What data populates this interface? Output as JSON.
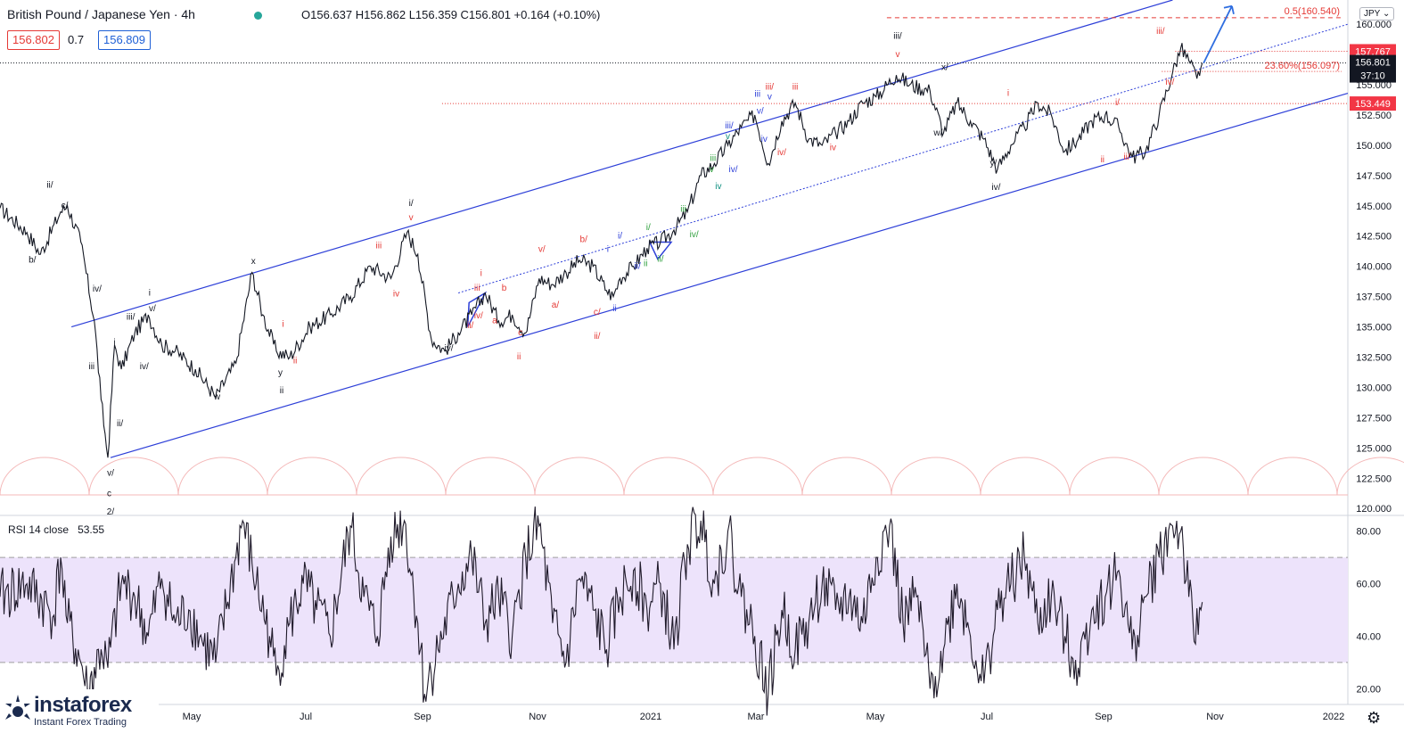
{
  "header": {
    "symbol": "British Pound / Japanese Yen",
    "interval": "4h",
    "ohlc": "O156.637 H156.862 L156.359 C156.801 +0.164 (+0.10%)",
    "sell_price": "156.802",
    "spread": "0.7",
    "buy_price": "156.809",
    "currency_button": "JPY"
  },
  "indicator": {
    "label": "RSI 14 close",
    "value": "53.55"
  },
  "logo": {
    "name": "instaforex",
    "tagline": "Instant Forex Trading"
  },
  "icons": {
    "settings": "gear-icon"
  },
  "chart_data": {
    "type": "line",
    "title": "British Pound / Japanese Yen · 4h",
    "xlabel": "",
    "ylabel": "",
    "time_axis": [
      "May",
      "Jul",
      "Sep",
      "Nov",
      "2021",
      "Mar",
      "May",
      "Jul",
      "Sep",
      "Nov",
      "2022"
    ],
    "price_axis": {
      "ylim": [
        119.5,
        162.0
      ],
      "ticks": [
        "120.000",
        "122.500",
        "125.000",
        "127.500",
        "130.000",
        "132.500",
        "135.000",
        "137.500",
        "140.000",
        "142.500",
        "145.000",
        "147.500",
        "150.000",
        "152.500",
        "155.000",
        "157.500",
        "160.000"
      ]
    },
    "price_path": [
      [
        0.0,
        144.8
      ],
      [
        0.02,
        142.8
      ],
      [
        0.03,
        141.0
      ],
      [
        0.045,
        144.5
      ],
      [
        0.05,
        145.0
      ],
      [
        0.06,
        142.0
      ],
      [
        0.07,
        135.5
      ],
      [
        0.075,
        129.0
      ],
      [
        0.08,
        124.2
      ],
      [
        0.085,
        133.5
      ],
      [
        0.09,
        131.5
      ],
      [
        0.1,
        134.5
      ],
      [
        0.11,
        136.0
      ],
      [
        0.12,
        133.5
      ],
      [
        0.13,
        133.0
      ],
      [
        0.145,
        131.5
      ],
      [
        0.16,
        129.2
      ],
      [
        0.175,
        132.0
      ],
      [
        0.187,
        139.5
      ],
      [
        0.195,
        136.0
      ],
      [
        0.205,
        133.0
      ],
      [
        0.215,
        132.5
      ],
      [
        0.23,
        135.0
      ],
      [
        0.245,
        136.0
      ],
      [
        0.26,
        137.5
      ],
      [
        0.275,
        140.0
      ],
      [
        0.29,
        139.0
      ],
      [
        0.302,
        142.8
      ],
      [
        0.31,
        141.0
      ],
      [
        0.32,
        134.0
      ],
      [
        0.33,
        133.0
      ],
      [
        0.34,
        134.5
      ],
      [
        0.35,
        136.0
      ],
      [
        0.36,
        137.8
      ],
      [
        0.37,
        135.5
      ],
      [
        0.38,
        136.0
      ],
      [
        0.39,
        134.5
      ],
      [
        0.4,
        139.0
      ],
      [
        0.41,
        138.5
      ],
      [
        0.42,
        139.5
      ],
      [
        0.43,
        140.5
      ],
      [
        0.44,
        140.0
      ],
      [
        0.45,
        138.0
      ],
      [
        0.455,
        137.5
      ],
      [
        0.46,
        139.0
      ],
      [
        0.47,
        140.0
      ],
      [
        0.48,
        141.5
      ],
      [
        0.49,
        142.0
      ],
      [
        0.5,
        143.0
      ],
      [
        0.51,
        144.5
      ],
      [
        0.52,
        147.5
      ],
      [
        0.53,
        148.5
      ],
      [
        0.54,
        150.0
      ],
      [
        0.55,
        151.5
      ],
      [
        0.56,
        152.5
      ],
      [
        0.57,
        148.5
      ],
      [
        0.58,
        152.0
      ],
      [
        0.59,
        153.5
      ],
      [
        0.6,
        150.5
      ],
      [
        0.61,
        150.0
      ],
      [
        0.62,
        151.0
      ],
      [
        0.63,
        152.0
      ],
      [
        0.64,
        153.5
      ],
      [
        0.65,
        154.0
      ],
      [
        0.665,
        155.8
      ],
      [
        0.675,
        155.0
      ],
      [
        0.69,
        154.5
      ],
      [
        0.7,
        151.0
      ],
      [
        0.71,
        153.5
      ],
      [
        0.72,
        152.0
      ],
      [
        0.73,
        150.5
      ],
      [
        0.74,
        148.0
      ],
      [
        0.75,
        150.0
      ],
      [
        0.76,
        151.5
      ],
      [
        0.77,
        153.5
      ],
      [
        0.78,
        152.5
      ],
      [
        0.79,
        149.5
      ],
      [
        0.8,
        150.5
      ],
      [
        0.81,
        152.0
      ],
      [
        0.82,
        152.5
      ],
      [
        0.83,
        151.5
      ],
      [
        0.84,
        149.0
      ],
      [
        0.85,
        149.5
      ],
      [
        0.86,
        152.5
      ],
      [
        0.87,
        156.0
      ],
      [
        0.876,
        158.0
      ],
      [
        0.882,
        157.0
      ],
      [
        0.888,
        155.5
      ],
      [
        0.892,
        156.8
      ]
    ],
    "rsi": {
      "ylim": [
        14,
        86
      ],
      "ticks": [
        "20.00",
        "40.00",
        "60.00",
        "80.00"
      ],
      "band": [
        30,
        70
      ],
      "last": 53.55,
      "path": [
        [
          0.0,
          55
        ],
        [
          0.02,
          60
        ],
        [
          0.04,
          48
        ],
        [
          0.045,
          70
        ],
        [
          0.05,
          45
        ],
        [
          0.06,
          30
        ],
        [
          0.065,
          18
        ],
        [
          0.075,
          35
        ],
        [
          0.08,
          28
        ],
        [
          0.09,
          60
        ],
        [
          0.1,
          55
        ],
        [
          0.11,
          40
        ],
        [
          0.12,
          62
        ],
        [
          0.13,
          45
        ],
        [
          0.14,
          50
        ],
        [
          0.15,
          38
        ],
        [
          0.16,
          30
        ],
        [
          0.175,
          70
        ],
        [
          0.18,
          84
        ],
        [
          0.19,
          60
        ],
        [
          0.2,
          40
        ],
        [
          0.205,
          25
        ],
        [
          0.215,
          45
        ],
        [
          0.225,
          60
        ],
        [
          0.235,
          50
        ],
        [
          0.245,
          40
        ],
        [
          0.26,
          82
        ],
        [
          0.27,
          55
        ],
        [
          0.28,
          40
        ],
        [
          0.29,
          78
        ],
        [
          0.3,
          84
        ],
        [
          0.31,
          45
        ],
        [
          0.315,
          18
        ],
        [
          0.325,
          35
        ],
        [
          0.34,
          60
        ],
        [
          0.35,
          70
        ],
        [
          0.36,
          45
        ],
        [
          0.37,
          55
        ],
        [
          0.38,
          40
        ],
        [
          0.39,
          70
        ],
        [
          0.4,
          82
        ],
        [
          0.41,
          45
        ],
        [
          0.42,
          30
        ],
        [
          0.43,
          62
        ],
        [
          0.44,
          50
        ],
        [
          0.45,
          35
        ],
        [
          0.46,
          55
        ],
        [
          0.47,
          65
        ],
        [
          0.48,
          50
        ],
        [
          0.49,
          60
        ],
        [
          0.5,
          35
        ],
        [
          0.51,
          75
        ],
        [
          0.52,
          84
        ],
        [
          0.53,
          60
        ],
        [
          0.54,
          80
        ],
        [
          0.55,
          55
        ],
        [
          0.56,
          40
        ],
        [
          0.57,
          18
        ],
        [
          0.58,
          50
        ],
        [
          0.59,
          35
        ],
        [
          0.6,
          45
        ],
        [
          0.61,
          60
        ],
        [
          0.62,
          50
        ],
        [
          0.63,
          55
        ],
        [
          0.64,
          45
        ],
        [
          0.65,
          70
        ],
        [
          0.66,
          82
        ],
        [
          0.67,
          45
        ],
        [
          0.68,
          55
        ],
        [
          0.69,
          20
        ],
        [
          0.7,
          35
        ],
        [
          0.71,
          60
        ],
        [
          0.72,
          40
        ],
        [
          0.73,
          22
        ],
        [
          0.74,
          50
        ],
        [
          0.75,
          60
        ],
        [
          0.76,
          70
        ],
        [
          0.77,
          45
        ],
        [
          0.78,
          55
        ],
        [
          0.79,
          40
        ],
        [
          0.8,
          28
        ],
        [
          0.81,
          50
        ],
        [
          0.82,
          55
        ],
        [
          0.83,
          65
        ],
        [
          0.84,
          35
        ],
        [
          0.85,
          55
        ],
        [
          0.86,
          70
        ],
        [
          0.87,
          82
        ],
        [
          0.876,
          80
        ],
        [
          0.882,
          55
        ],
        [
          0.886,
          38
        ],
        [
          0.892,
          53
        ]
      ]
    }
  },
  "annotations": {
    "fib_labels": [
      "0.5(160.540)",
      "23.60%(156.097)"
    ],
    "price_tags": [
      "157.767",
      "156.801",
      "37:10",
      "153.449"
    ],
    "wave_labels": [
      {
        "t": "ii/",
        "f": 0.037,
        "p": 146.5,
        "c": "black"
      },
      {
        "t": "c/",
        "f": 0.048,
        "p": 144.8,
        "c": "black"
      },
      {
        "t": "b/",
        "f": 0.024,
        "p": 140.3,
        "c": "black"
      },
      {
        "t": "iv/",
        "f": 0.072,
        "p": 137.9,
        "c": "black"
      },
      {
        "t": "iii/",
        "f": 0.097,
        "p": 135.6,
        "c": "black"
      },
      {
        "t": "v/",
        "f": 0.113,
        "p": 136.3,
        "c": "black"
      },
      {
        "t": "i",
        "f": 0.111,
        "p": 137.6,
        "c": "black"
      },
      {
        "t": "i",
        "f": 0.085,
        "p": 133.5,
        "c": "black"
      },
      {
        "t": "iii",
        "f": 0.068,
        "p": 131.5,
        "c": "black"
      },
      {
        "t": "iv/",
        "f": 0.107,
        "p": 131.5,
        "c": "black"
      },
      {
        "t": "ii/",
        "f": 0.089,
        "p": 126.8,
        "c": "black"
      },
      {
        "t": "v/",
        "f": 0.082,
        "p": 122.7,
        "c": "black"
      },
      {
        "t": "c",
        "f": 0.081,
        "p": 121.0,
        "c": "black"
      },
      {
        "t": "2/",
        "f": 0.082,
        "p": 119.5,
        "c": "black"
      },
      {
        "t": "w",
        "f": 0.161,
        "p": 129.0,
        "c": "black"
      },
      {
        "t": "x",
        "f": 0.188,
        "p": 140.2,
        "c": "black"
      },
      {
        "t": "y",
        "f": 0.208,
        "p": 131.0,
        "c": "black"
      },
      {
        "t": "ii",
        "f": 0.209,
        "p": 129.5,
        "c": "black"
      },
      {
        "t": "i",
        "f": 0.21,
        "p": 135.0,
        "c": "red"
      },
      {
        "t": "ii",
        "f": 0.219,
        "p": 132.0,
        "c": "red"
      },
      {
        "t": "iii",
        "f": 0.281,
        "p": 141.5,
        "c": "red"
      },
      {
        "t": "iv",
        "f": 0.294,
        "p": 137.5,
        "c": "red"
      },
      {
        "t": "i/",
        "f": 0.305,
        "p": 145.0,
        "c": "black"
      },
      {
        "t": "v",
        "f": 0.305,
        "p": 143.8,
        "c": "red"
      },
      {
        "t": "iv/",
        "f": 0.333,
        "p": 133.0,
        "c": "black"
      },
      {
        "t": "i",
        "f": 0.357,
        "p": 139.2,
        "c": "red"
      },
      {
        "t": "iii",
        "f": 0.354,
        "p": 138.0,
        "c": "red"
      },
      {
        "t": "iv/",
        "f": 0.355,
        "p": 135.7,
        "c": "red"
      },
      {
        "t": "ii/",
        "f": 0.349,
        "p": 134.9,
        "c": "red"
      },
      {
        "t": "b",
        "f": 0.374,
        "p": 138.0,
        "c": "red"
      },
      {
        "t": "a",
        "f": 0.367,
        "p": 135.3,
        "c": "red"
      },
      {
        "t": "c",
        "f": 0.386,
        "p": 134.3,
        "c": "red"
      },
      {
        "t": "ii",
        "f": 0.385,
        "p": 132.3,
        "c": "red"
      },
      {
        "t": "v/",
        "f": 0.402,
        "p": 141.2,
        "c": "red"
      },
      {
        "t": "a/",
        "f": 0.412,
        "p": 136.6,
        "c": "red"
      },
      {
        "t": "b/",
        "f": 0.433,
        "p": 142.0,
        "c": "red"
      },
      {
        "t": "c/",
        "f": 0.443,
        "p": 136.0,
        "c": "red"
      },
      {
        "t": "ii/",
        "f": 0.443,
        "p": 134.0,
        "c": "red"
      },
      {
        "t": "i",
        "f": 0.451,
        "p": 141.2,
        "c": "blue"
      },
      {
        "t": "ii",
        "f": 0.456,
        "p": 136.3,
        "c": "blue"
      },
      {
        "t": "i/",
        "f": 0.46,
        "p": 142.3,
        "c": "blue"
      },
      {
        "t": "ii/",
        "f": 0.473,
        "p": 139.8,
        "c": "blue"
      },
      {
        "t": "ii",
        "f": 0.479,
        "p": 140.0,
        "c": "green"
      },
      {
        "t": "i/",
        "f": 0.481,
        "p": 143.0,
        "c": "green"
      },
      {
        "t": "ii/",
        "f": 0.49,
        "p": 140.4,
        "c": "green"
      },
      {
        "t": "iii",
        "f": 0.507,
        "p": 144.5,
        "c": "green"
      },
      {
        "t": "iv/",
        "f": 0.515,
        "p": 142.4,
        "c": "green"
      },
      {
        "t": "iii",
        "f": 0.529,
        "p": 148.7,
        "c": "green"
      },
      {
        "t": "v",
        "f": 0.528,
        "p": 147.8,
        "c": "green"
      },
      {
        "t": "iv",
        "f": 0.533,
        "p": 146.4,
        "c": "teal"
      },
      {
        "t": "v",
        "f": 0.54,
        "p": 150.5,
        "c": "teal"
      },
      {
        "t": "iii/",
        "f": 0.541,
        "p": 151.4,
        "c": "blue"
      },
      {
        "t": "iv/",
        "f": 0.544,
        "p": 147.8,
        "c": "blue"
      },
      {
        "t": "iii",
        "f": 0.562,
        "p": 154.0,
        "c": "blue"
      },
      {
        "t": "v/",
        "f": 0.564,
        "p": 152.6,
        "c": "blue"
      },
      {
        "t": "iv",
        "f": 0.567,
        "p": 150.3,
        "c": "blue"
      },
      {
        "t": "v",
        "f": 0.571,
        "p": 153.8,
        "c": "blue"
      },
      {
        "t": "iii/",
        "f": 0.571,
        "p": 154.6,
        "c": "red"
      },
      {
        "t": "iii",
        "f": 0.59,
        "p": 154.6,
        "c": "red"
      },
      {
        "t": "iv/",
        "f": 0.58,
        "p": 149.2,
        "c": "red"
      },
      {
        "t": "iv",
        "f": 0.618,
        "p": 149.6,
        "c": "red"
      },
      {
        "t": "iii/",
        "f": 0.666,
        "p": 158.8,
        "c": "black"
      },
      {
        "t": "v",
        "f": 0.666,
        "p": 157.3,
        "c": "red"
      },
      {
        "t": "x/",
        "f": 0.701,
        "p": 156.2,
        "c": "black"
      },
      {
        "t": "w/",
        "f": 0.696,
        "p": 150.8,
        "c": "black"
      },
      {
        "t": "i",
        "f": 0.748,
        "p": 154.1,
        "c": "red"
      },
      {
        "t": "y/",
        "f": 0.737,
        "p": 148.3,
        "c": "black"
      },
      {
        "t": "iv/",
        "f": 0.739,
        "p": 146.3,
        "c": "black"
      },
      {
        "t": "ii",
        "f": 0.818,
        "p": 148.6,
        "c": "red"
      },
      {
        "t": "i/",
        "f": 0.829,
        "p": 153.3,
        "c": "red"
      },
      {
        "t": "ii/",
        "f": 0.836,
        "p": 148.8,
        "c": "red"
      },
      {
        "t": "iii/",
        "f": 0.861,
        "p": 159.2,
        "c": "red"
      },
      {
        "t": "iv/",
        "f": 0.868,
        "p": 155.0,
        "c": "red"
      }
    ]
  }
}
